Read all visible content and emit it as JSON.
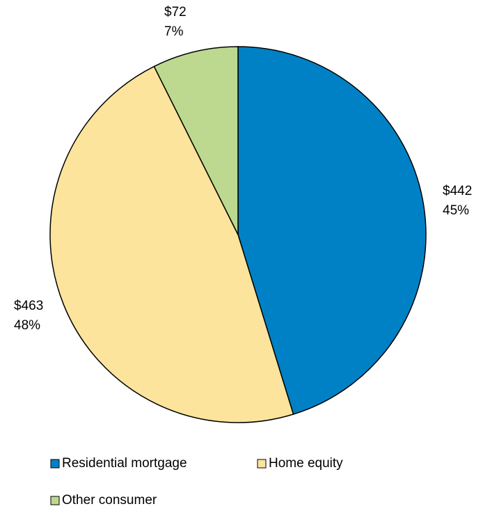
{
  "chart_data": {
    "type": "pie",
    "categories": [
      "Residential mortgage",
      "Home equity",
      "Other consumer"
    ],
    "values": [
      442,
      463,
      72
    ],
    "value_labels": [
      "$442",
      "$463",
      "$72"
    ],
    "percents": [
      45,
      48,
      7
    ],
    "percent_labels": [
      "45%",
      "48%",
      "7%"
    ],
    "colors": [
      "#0081c6",
      "#fde49c",
      "#bcd98f"
    ],
    "legend": "bottom"
  }
}
